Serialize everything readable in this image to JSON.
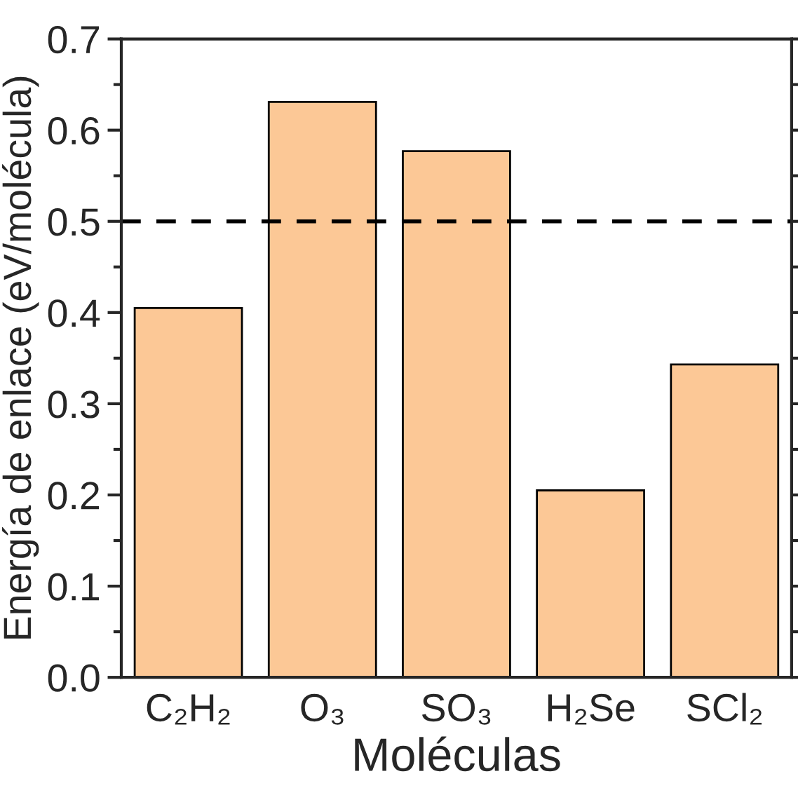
{
  "chart_data": {
    "type": "bar",
    "xlabel": "Moléculas",
    "ylabel": "Energía de enlace (eV/molécula)",
    "categories": [
      "C₂H₂",
      "O₃",
      "SO₃",
      "H₂Se",
      "SCl₂"
    ],
    "values": [
      0.405,
      0.631,
      0.577,
      0.205,
      0.343
    ],
    "color": "#fcc896",
    "ylim": [
      0,
      0.7
    ],
    "yticks": [
      {
        "value": 0,
        "label": "0.0"
      },
      0.1,
      0.2,
      0.3,
      0.4,
      0.5,
      0.6,
      0.7
    ],
    "ref_lines": [
      {
        "axis": "y",
        "value": 0.5,
        "color": "#000000",
        "line_style": "dashed"
      }
    ],
    "grid": false,
    "legend": false
  }
}
